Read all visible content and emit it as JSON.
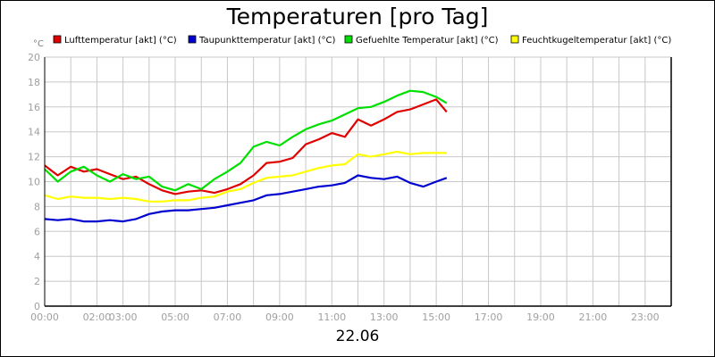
{
  "chart_data": {
    "type": "line",
    "title": "Temperaturen [pro Tag]",
    "ylabel": "°C",
    "xlabel": "22.06",
    "ylim": [
      0,
      20
    ],
    "yticks": [
      0,
      2,
      4,
      6,
      8,
      10,
      12,
      14,
      16,
      18,
      20
    ],
    "xlim": [
      0,
      24
    ],
    "xtick_labels": [
      {
        "h": 0,
        "label": "00:00"
      },
      {
        "h": 2,
        "label": "02:00"
      },
      {
        "h": 3,
        "label": "03:00"
      },
      {
        "h": 5,
        "label": "05:00"
      },
      {
        "h": 7,
        "label": "07:00"
      },
      {
        "h": 9,
        "label": "09:00"
      },
      {
        "h": 11,
        "label": "11:00"
      },
      {
        "h": 13,
        "label": "13:00"
      },
      {
        "h": 15,
        "label": "15:00"
      },
      {
        "h": 17,
        "label": "17:00"
      },
      {
        "h": 19,
        "label": "19:00"
      },
      {
        "h": 21,
        "label": "21:00"
      },
      {
        "h": 23,
        "label": "23:00"
      }
    ],
    "grid": true,
    "legend_position": "top",
    "x": [
      0,
      0.5,
      1,
      1.5,
      2,
      2.5,
      3,
      3.5,
      4,
      4.5,
      5,
      5.5,
      6,
      6.5,
      7,
      7.5,
      8,
      8.5,
      9,
      9.5,
      10,
      10.5,
      11,
      11.5,
      12,
      12.5,
      13,
      13.5,
      14,
      14.5,
      15,
      15.4
    ],
    "series": [
      {
        "name": "Lufttemperatur [akt] (°C)",
        "color": "#e00000",
        "values": [
          11.3,
          10.5,
          11.2,
          10.8,
          11.0,
          10.6,
          10.2,
          10.4,
          9.8,
          9.3,
          9.0,
          9.2,
          9.3,
          9.1,
          9.4,
          9.8,
          10.5,
          11.5,
          11.6,
          11.9,
          13.0,
          13.4,
          13.9,
          13.6,
          15.0,
          14.5,
          15.0,
          15.6,
          15.8,
          16.2,
          16.6,
          15.6
        ]
      },
      {
        "name": "Taupunkttemperatur [akt] (°C)",
        "color": "#0000d0",
        "values": [
          7.0,
          6.9,
          7.0,
          6.8,
          6.8,
          6.9,
          6.8,
          7.0,
          7.4,
          7.6,
          7.7,
          7.7,
          7.8,
          7.9,
          8.1,
          8.3,
          8.5,
          8.9,
          9.0,
          9.2,
          9.4,
          9.6,
          9.7,
          9.9,
          10.5,
          10.3,
          10.2,
          10.4,
          9.9,
          9.6,
          10.0,
          10.3
        ]
      },
      {
        "name": "Gefuehlte Temperatur [akt] (°C)",
        "color": "#00e000",
        "values": [
          11.0,
          10.0,
          10.8,
          11.2,
          10.5,
          10.0,
          10.6,
          10.2,
          10.4,
          9.6,
          9.3,
          9.8,
          9.4,
          10.2,
          10.8,
          11.5,
          12.8,
          13.2,
          12.9,
          13.6,
          14.2,
          14.6,
          14.9,
          15.4,
          15.9,
          16.0,
          16.4,
          16.9,
          17.3,
          17.2,
          16.8,
          16.3
        ]
      },
      {
        "name": "Feuchtkugeltemperatur [akt] (°C)",
        "color": "#ffff00",
        "values": [
          8.9,
          8.6,
          8.8,
          8.7,
          8.7,
          8.6,
          8.7,
          8.6,
          8.4,
          8.4,
          8.5,
          8.5,
          8.7,
          8.8,
          9.2,
          9.4,
          9.9,
          10.3,
          10.4,
          10.5,
          10.8,
          11.1,
          11.3,
          11.4,
          12.2,
          12.0,
          12.2,
          12.4,
          12.2,
          12.3,
          12.3,
          12.3
        ]
      }
    ]
  }
}
